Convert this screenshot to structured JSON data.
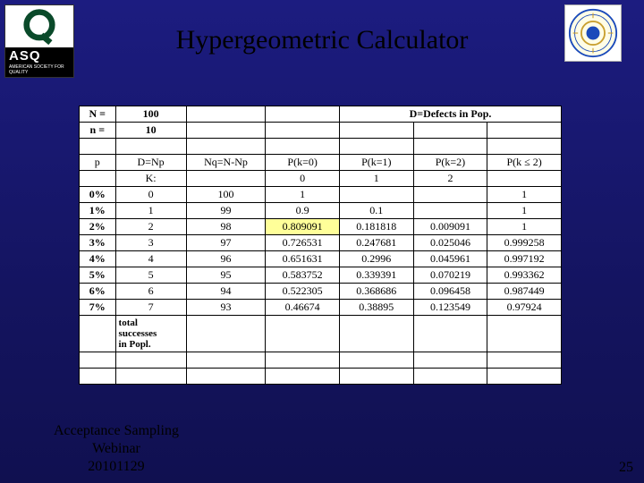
{
  "title": "Hypergeometric Calculator",
  "logo": {
    "asq": "ASQ",
    "sub": "AMERICAN SOCIETY FOR QUALITY"
  },
  "header": {
    "N_label": "N =",
    "N_value": "100",
    "n_label": "n =",
    "n_value": "10",
    "D_label": "D=Defects in Pop."
  },
  "columns": {
    "p": "p",
    "D": "D=Np",
    "Nq": "Nq=N-Np",
    "pk0": "P(k=0)",
    "pk1": "P(k=1)",
    "pk2": "P(k=2)",
    "ple2": "P(k ≤ 2)",
    "K": "K:",
    "k0": "0",
    "k1": "1",
    "k2": "2"
  },
  "rows": [
    {
      "p": "0%",
      "D": "0",
      "Nq": "100",
      "pk0": "1",
      "pk1": "",
      "pk2": "",
      "ple2": "1"
    },
    {
      "p": "1%",
      "D": "1",
      "Nq": "99",
      "pk0": "0.9",
      "pk1": "0.1",
      "pk2": "",
      "ple2": "1"
    },
    {
      "p": "2%",
      "D": "2",
      "Nq": "98",
      "pk0": "0.809091",
      "pk1": "0.181818",
      "pk2": "0.009091",
      "ple2": "1",
      "hl": true
    },
    {
      "p": "3%",
      "D": "3",
      "Nq": "97",
      "pk0": "0.726531",
      "pk1": "0.247681",
      "pk2": "0.025046",
      "ple2": "0.999258"
    },
    {
      "p": "4%",
      "D": "4",
      "Nq": "96",
      "pk0": "0.651631",
      "pk1": "0.2996",
      "pk2": "0.045961",
      "ple2": "0.997192"
    },
    {
      "p": "5%",
      "D": "5",
      "Nq": "95",
      "pk0": "0.583752",
      "pk1": "0.339391",
      "pk2": "0.070219",
      "ple2": "0.993362"
    },
    {
      "p": "6%",
      "D": "6",
      "Nq": "94",
      "pk0": "0.522305",
      "pk1": "0.368686",
      "pk2": "0.096458",
      "ple2": "0.987449"
    },
    {
      "p": "7%",
      "D": "7",
      "Nq": "93",
      "pk0": "0.46674",
      "pk1": "0.38895",
      "pk2": "0.123549",
      "ple2": "0.97924"
    }
  ],
  "tablenote": "total successes in Popl.",
  "footer": {
    "line1": "Acceptance Sampling",
    "line2": "Webinar",
    "line3": "20101129"
  },
  "page": "25"
}
